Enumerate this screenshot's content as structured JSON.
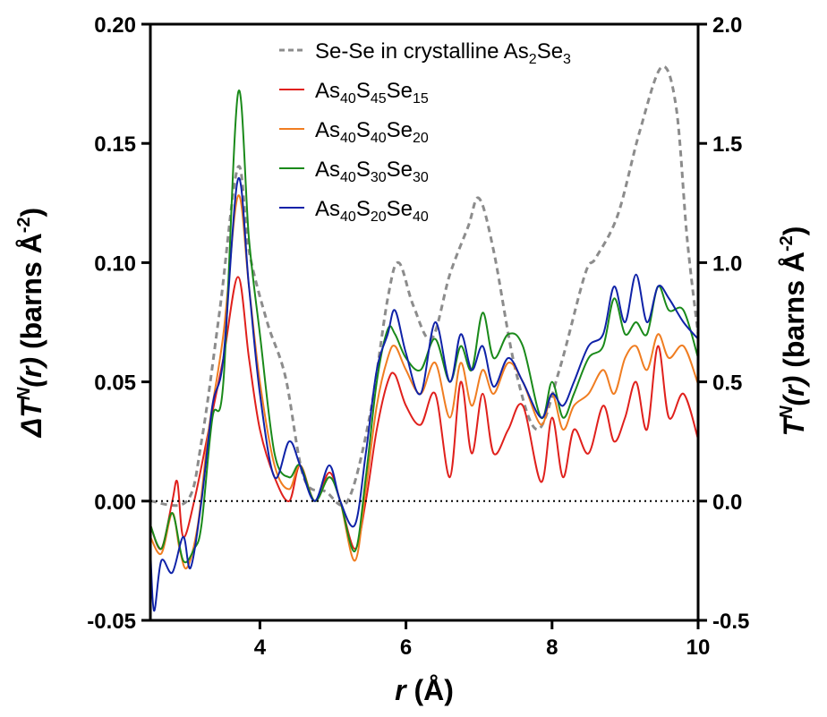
{
  "chart_data": {
    "type": "line",
    "xlim": [
      2.5,
      10
    ],
    "ylim_left": [
      -0.05,
      0.2
    ],
    "ylim_right": [
      -0.5,
      2.0
    ],
    "x_ticks": [
      4,
      6,
      8,
      10
    ],
    "x_tick_labels": [
      "4",
      "6",
      "8",
      "10"
    ],
    "y_left_ticks": [
      -0.05,
      0.0,
      0.05,
      0.1,
      0.15,
      0.2
    ],
    "y_left_tick_labels": [
      "-0.05",
      "0.00",
      "0.05",
      "0.10",
      "0.15",
      "0.20"
    ],
    "y_right_ticks": [
      -0.5,
      0.0,
      0.5,
      1.0,
      1.5,
      2.0
    ],
    "y_right_tick_labels": [
      "-0.5",
      "0.0",
      "0.5",
      "1.0",
      "1.5",
      "2.0"
    ],
    "xlabel": {
      "var": "r",
      "unit": " (Å)"
    },
    "ylabel_left": {
      "prefix": "ΔT",
      "sup": "N",
      "mid": "(r)",
      "unit": " (barns Å",
      "exp": "-2",
      "close": ")"
    },
    "ylabel_right": {
      "prefix": "T",
      "sup": "N",
      "mid": "(r)",
      "unit": " (barns Å",
      "exp": "-2",
      "close": ")"
    },
    "zero_line": {
      "y": 0.0,
      "style": "dotted"
    },
    "legend_position": "top-center",
    "series": [
      {
        "name": "Se-Se in  crystalline As2Se3",
        "legend_parts": [
          [
            "Se-Se in  crystalline As",
            ""
          ],
          [
            "2",
            "sub"
          ],
          [
            "Se",
            ""
          ],
          [
            "3",
            "sub"
          ]
        ],
        "axis": "right",
        "color": "#8c8c8c",
        "dash": "dashed",
        "points": [
          [
            2.5,
            0.0
          ],
          [
            3.0,
            0.0
          ],
          [
            3.2,
            0.25
          ],
          [
            3.45,
            0.8
          ],
          [
            3.7,
            1.4
          ],
          [
            3.85,
            1.05
          ],
          [
            4.1,
            0.75
          ],
          [
            4.35,
            0.52
          ],
          [
            4.6,
            0.1
          ],
          [
            4.9,
            0.04
          ],
          [
            5.2,
            0.0
          ],
          [
            5.5,
            0.35
          ],
          [
            5.75,
            0.85
          ],
          [
            5.9,
            1.0
          ],
          [
            6.1,
            0.82
          ],
          [
            6.35,
            0.68
          ],
          [
            6.6,
            0.95
          ],
          [
            6.85,
            1.15
          ],
          [
            7.0,
            1.27
          ],
          [
            7.2,
            1.05
          ],
          [
            7.5,
            0.55
          ],
          [
            7.8,
            0.3
          ],
          [
            8.1,
            0.55
          ],
          [
            8.45,
            0.95
          ],
          [
            8.6,
            1.02
          ],
          [
            8.9,
            1.2
          ],
          [
            9.2,
            1.55
          ],
          [
            9.5,
            1.82
          ],
          [
            9.7,
            1.65
          ],
          [
            9.85,
            1.1
          ],
          [
            10.0,
            0.7
          ]
        ]
      },
      {
        "name": "As40S45Se15",
        "legend_parts": [
          [
            "As",
            ""
          ],
          [
            "40",
            "sub"
          ],
          [
            "S",
            ""
          ],
          [
            "45",
            "sub"
          ],
          [
            "Se",
            ""
          ],
          [
            "15",
            "sub"
          ]
        ],
        "axis": "left",
        "color": "#e0201c",
        "dash": "solid",
        "points": [
          [
            2.5,
            -0.01
          ],
          [
            2.65,
            -0.02
          ],
          [
            2.8,
            0.0
          ],
          [
            2.87,
            0.008
          ],
          [
            2.95,
            -0.015
          ],
          [
            3.1,
            0.0
          ],
          [
            3.3,
            0.03
          ],
          [
            3.5,
            0.06
          ],
          [
            3.7,
            0.094
          ],
          [
            3.85,
            0.06
          ],
          [
            4.0,
            0.03
          ],
          [
            4.2,
            0.01
          ],
          [
            4.4,
            0.0
          ],
          [
            4.55,
            0.015
          ],
          [
            4.75,
            0.0
          ],
          [
            4.95,
            0.012
          ],
          [
            5.1,
            0.0
          ],
          [
            5.3,
            -0.02
          ],
          [
            5.45,
            0.0
          ],
          [
            5.6,
            0.03
          ],
          [
            5.75,
            0.05
          ],
          [
            5.85,
            0.053
          ],
          [
            6.0,
            0.04
          ],
          [
            6.2,
            0.032
          ],
          [
            6.4,
            0.045
          ],
          [
            6.6,
            0.01
          ],
          [
            6.75,
            0.05
          ],
          [
            6.9,
            0.02
          ],
          [
            7.05,
            0.045
          ],
          [
            7.2,
            0.02
          ],
          [
            7.4,
            0.03
          ],
          [
            7.6,
            0.04
          ],
          [
            7.85,
            0.008
          ],
          [
            8.0,
            0.035
          ],
          [
            8.15,
            0.01
          ],
          [
            8.3,
            0.03
          ],
          [
            8.5,
            0.02
          ],
          [
            8.7,
            0.04
          ],
          [
            8.85,
            0.025
          ],
          [
            9.0,
            0.035
          ],
          [
            9.15,
            0.05
          ],
          [
            9.3,
            0.03
          ],
          [
            9.45,
            0.065
          ],
          [
            9.6,
            0.035
          ],
          [
            9.8,
            0.045
          ],
          [
            10.0,
            0.026
          ]
        ]
      },
      {
        "name": "As40S40Se20",
        "legend_parts": [
          [
            "As",
            ""
          ],
          [
            "40",
            "sub"
          ],
          [
            "S",
            ""
          ],
          [
            "40",
            "sub"
          ],
          [
            "Se",
            ""
          ],
          [
            "20",
            "sub"
          ]
        ],
        "axis": "left",
        "color": "#f07d21",
        "dash": "solid",
        "points": [
          [
            2.5,
            -0.015
          ],
          [
            2.65,
            -0.022
          ],
          [
            2.8,
            -0.005
          ],
          [
            2.9,
            -0.02
          ],
          [
            3.0,
            -0.028
          ],
          [
            3.15,
            -0.01
          ],
          [
            3.3,
            0.03
          ],
          [
            3.5,
            0.07
          ],
          [
            3.7,
            0.128
          ],
          [
            3.85,
            0.09
          ],
          [
            4.0,
            0.05
          ],
          [
            4.2,
            0.015
          ],
          [
            4.4,
            0.005
          ],
          [
            4.55,
            0.015
          ],
          [
            4.75,
            0.0
          ],
          [
            4.95,
            0.01
          ],
          [
            5.1,
            0.0
          ],
          [
            5.3,
            -0.025
          ],
          [
            5.45,
            0.005
          ],
          [
            5.6,
            0.04
          ],
          [
            5.75,
            0.06
          ],
          [
            5.85,
            0.065
          ],
          [
            6.0,
            0.055
          ],
          [
            6.2,
            0.045
          ],
          [
            6.4,
            0.058
          ],
          [
            6.6,
            0.035
          ],
          [
            6.75,
            0.058
          ],
          [
            6.9,
            0.04
          ],
          [
            7.05,
            0.055
          ],
          [
            7.2,
            0.045
          ],
          [
            7.4,
            0.058
          ],
          [
            7.6,
            0.05
          ],
          [
            7.85,
            0.032
          ],
          [
            8.0,
            0.045
          ],
          [
            8.15,
            0.03
          ],
          [
            8.3,
            0.04
          ],
          [
            8.5,
            0.045
          ],
          [
            8.7,
            0.055
          ],
          [
            8.85,
            0.045
          ],
          [
            9.0,
            0.06
          ],
          [
            9.15,
            0.065
          ],
          [
            9.3,
            0.055
          ],
          [
            9.45,
            0.07
          ],
          [
            9.6,
            0.06
          ],
          [
            9.8,
            0.065
          ],
          [
            10.0,
            0.049
          ]
        ]
      },
      {
        "name": "As40S30Se30",
        "legend_parts": [
          [
            "As",
            ""
          ],
          [
            "40",
            "sub"
          ],
          [
            "S",
            ""
          ],
          [
            "30",
            "sub"
          ],
          [
            "Se",
            ""
          ],
          [
            "30",
            "sub"
          ]
        ],
        "axis": "left",
        "color": "#1a8a1a",
        "dash": "solid",
        "points": [
          [
            2.5,
            -0.01
          ],
          [
            2.65,
            -0.02
          ],
          [
            2.8,
            -0.005
          ],
          [
            2.95,
            -0.025
          ],
          [
            3.1,
            -0.02
          ],
          [
            3.2,
            -0.01
          ],
          [
            3.35,
            0.035
          ],
          [
            3.5,
            0.05
          ],
          [
            3.7,
            0.171
          ],
          [
            3.85,
            0.11
          ],
          [
            4.0,
            0.07
          ],
          [
            4.2,
            0.02
          ],
          [
            4.4,
            0.01
          ],
          [
            4.55,
            0.015
          ],
          [
            4.75,
            0.0
          ],
          [
            4.95,
            0.01
          ],
          [
            5.1,
            0.0
          ],
          [
            5.3,
            -0.021
          ],
          [
            5.45,
            0.01
          ],
          [
            5.6,
            0.05
          ],
          [
            5.75,
            0.072
          ],
          [
            5.85,
            0.07
          ],
          [
            6.0,
            0.06
          ],
          [
            6.2,
            0.055
          ],
          [
            6.4,
            0.068
          ],
          [
            6.6,
            0.05
          ],
          [
            6.75,
            0.065
          ],
          [
            6.9,
            0.055
          ],
          [
            7.05,
            0.079
          ],
          [
            7.2,
            0.06
          ],
          [
            7.4,
            0.07
          ],
          [
            7.6,
            0.065
          ],
          [
            7.85,
            0.035
          ],
          [
            8.0,
            0.05
          ],
          [
            8.15,
            0.035
          ],
          [
            8.3,
            0.045
          ],
          [
            8.5,
            0.06
          ],
          [
            8.7,
            0.065
          ],
          [
            8.85,
            0.085
          ],
          [
            9.0,
            0.07
          ],
          [
            9.15,
            0.075
          ],
          [
            9.3,
            0.07
          ],
          [
            9.45,
            0.09
          ],
          [
            9.6,
            0.08
          ],
          [
            9.8,
            0.08
          ],
          [
            10.0,
            0.06
          ]
        ]
      },
      {
        "name": "As40S20Se40",
        "legend_parts": [
          [
            "As",
            ""
          ],
          [
            "40",
            "sub"
          ],
          [
            "S",
            ""
          ],
          [
            "20",
            "sub"
          ],
          [
            "Se",
            ""
          ],
          [
            "40",
            "sub"
          ]
        ],
        "axis": "left",
        "color": "#0f22a8",
        "dash": "solid",
        "points": [
          [
            2.5,
            -0.02
          ],
          [
            2.55,
            -0.046
          ],
          [
            2.65,
            -0.025
          ],
          [
            2.8,
            -0.03
          ],
          [
            2.95,
            -0.015
          ],
          [
            3.05,
            -0.028
          ],
          [
            3.2,
            0.0
          ],
          [
            3.35,
            0.04
          ],
          [
            3.5,
            0.06
          ],
          [
            3.7,
            0.135
          ],
          [
            3.85,
            0.09
          ],
          [
            4.0,
            0.045
          ],
          [
            4.2,
            0.01
          ],
          [
            4.4,
            0.025
          ],
          [
            4.55,
            0.015
          ],
          [
            4.75,
            0.0
          ],
          [
            4.95,
            0.015
          ],
          [
            5.1,
            0.0
          ],
          [
            5.3,
            -0.01
          ],
          [
            5.45,
            0.02
          ],
          [
            5.6,
            0.055
          ],
          [
            5.75,
            0.07
          ],
          [
            5.85,
            0.08
          ],
          [
            6.0,
            0.062
          ],
          [
            6.2,
            0.045
          ],
          [
            6.4,
            0.075
          ],
          [
            6.6,
            0.05
          ],
          [
            6.75,
            0.07
          ],
          [
            6.9,
            0.055
          ],
          [
            7.05,
            0.065
          ],
          [
            7.2,
            0.048
          ],
          [
            7.4,
            0.06
          ],
          [
            7.6,
            0.05
          ],
          [
            7.85,
            0.035
          ],
          [
            8.0,
            0.045
          ],
          [
            8.15,
            0.04
          ],
          [
            8.3,
            0.05
          ],
          [
            8.5,
            0.065
          ],
          [
            8.7,
            0.07
          ],
          [
            8.85,
            0.09
          ],
          [
            9.0,
            0.075
          ],
          [
            9.15,
            0.095
          ],
          [
            9.3,
            0.075
          ],
          [
            9.45,
            0.09
          ],
          [
            9.6,
            0.085
          ],
          [
            9.8,
            0.075
          ],
          [
            10.0,
            0.068
          ]
        ]
      }
    ]
  }
}
